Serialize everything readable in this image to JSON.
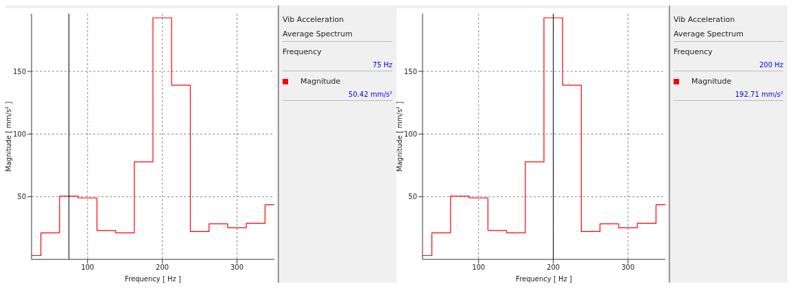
{
  "chart_data": [
    {
      "type": "step",
      "xlabel": "Frequency [ Hz ]",
      "ylabel": "Magnitude [ mm/s² ]",
      "x": [
        25,
        50,
        75,
        100,
        125,
        150,
        175,
        200,
        225,
        250,
        275,
        300,
        325,
        350
      ],
      "series": [
        {
          "name": "Magnitude",
          "color": "#ff0000",
          "values": [
            3.0,
            21.2,
            50.42,
            49.0,
            23.1,
            21.2,
            77.8,
            192.71,
            139.0,
            22.2,
            28.4,
            25.3,
            28.8,
            43.6
          ]
        }
      ],
      "xlim": [
        25,
        350
      ],
      "xticks": [
        100,
        200,
        300
      ],
      "ylim": [
        0,
        196
      ],
      "yticks": [
        50,
        100,
        150
      ],
      "grid": true,
      "legend": "right",
      "marker": "none",
      "ref_lines": [
        {
          "axis": "x",
          "value": 75,
          "color": "#000000"
        }
      ],
      "annotations": [
        "Vib Acceleration",
        "Average Spectrum",
        "Frequency",
        "75 Hz",
        "50.42 mm/s²"
      ]
    },
    {
      "type": "step",
      "xlabel": "Frequency [ Hz ]",
      "ylabel": "Magnitude [ mm/s² ]",
      "x": [
        25,
        50,
        75,
        100,
        125,
        150,
        175,
        200,
        225,
        250,
        275,
        300,
        325,
        350
      ],
      "series": [
        {
          "name": "Magnitude",
          "color": "#ff0000",
          "values": [
            3.0,
            21.2,
            50.42,
            49.0,
            23.1,
            21.2,
            77.8,
            192.71,
            139.0,
            22.2,
            28.4,
            25.3,
            28.8,
            43.6
          ]
        }
      ],
      "xlim": [
        25,
        350
      ],
      "xticks": [
        100,
        200,
        300
      ],
      "ylim": [
        0,
        196
      ],
      "yticks": [
        50,
        100,
        150
      ],
      "grid": true,
      "legend": "right",
      "marker": "none",
      "ref_lines": [
        {
          "axis": "x",
          "value": 200,
          "color": "#000000"
        }
      ],
      "annotations": [
        "Vib Acceleration",
        "Average Spectrum",
        "Frequency",
        "200 Hz",
        "192.71 mm/s²"
      ]
    }
  ]
}
